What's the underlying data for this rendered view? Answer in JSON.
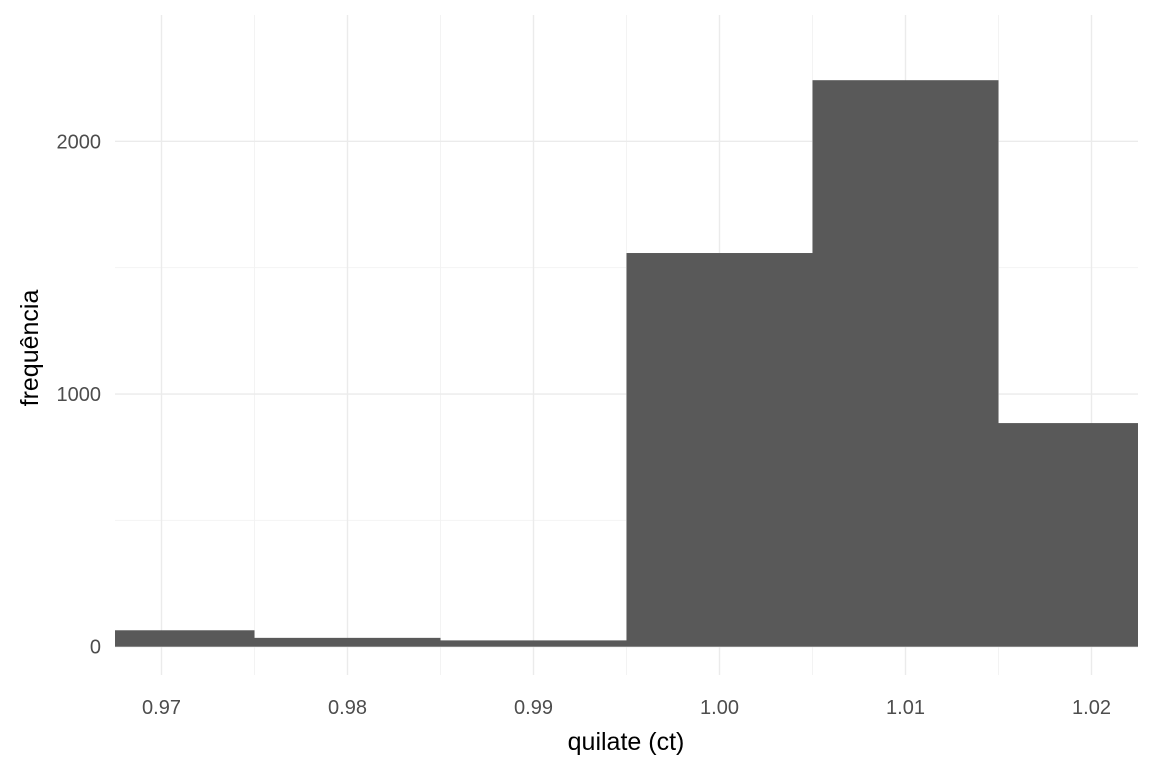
{
  "chart_data": {
    "type": "bar",
    "histogram": true,
    "bins": [
      {
        "start": 0.965,
        "end": 0.975,
        "count": 65
      },
      {
        "start": 0.975,
        "end": 0.985,
        "count": 35
      },
      {
        "start": 0.985,
        "end": 0.995,
        "count": 25
      },
      {
        "start": 0.995,
        "end": 1.005,
        "count": 1558
      },
      {
        "start": 1.005,
        "end": 1.015,
        "count": 2242
      },
      {
        "start": 1.015,
        "end": 1.025,
        "count": 885
      }
    ],
    "x_ticks": [
      "0.97",
      "0.98",
      "0.99",
      "1.00",
      "1.01",
      "1.02"
    ],
    "y_ticks": [
      "0",
      "1000",
      "2000"
    ],
    "xlabel": "quilate (ct)",
    "ylabel": "frequência",
    "xlim": [
      0.9675,
      1.0225
    ],
    "ylim": [
      -112,
      2500
    ],
    "bar_color": "#595959",
    "grid": true
  }
}
